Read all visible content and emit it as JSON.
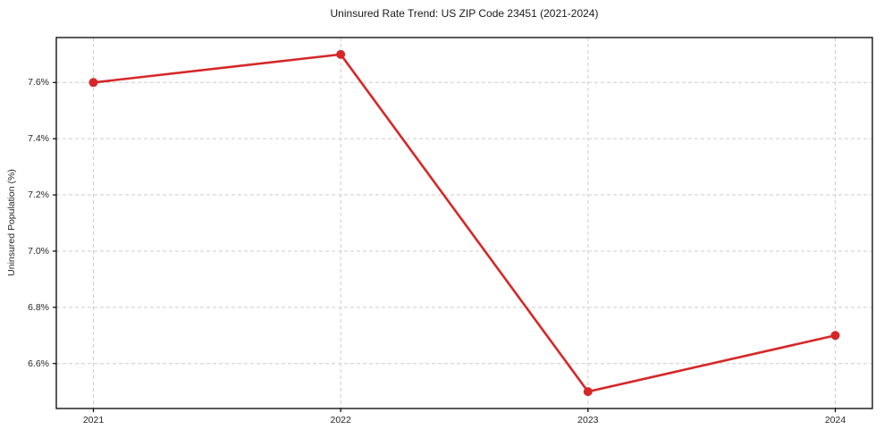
{
  "chart": {
    "title": "Uninsured Rate Trend: US ZIP Code 23451 (2021-2024)",
    "y_axis_label": "Uninsured Population (%)"
  },
  "chart_data": {
    "type": "line",
    "title": "Uninsured Rate Trend: US ZIP Code 23451 (2021-2024)",
    "xlabel": "",
    "ylabel": "Uninsured Population (%)",
    "x": [
      2021,
      2022,
      2023,
      2024
    ],
    "values": [
      7.6,
      7.7,
      6.5,
      6.7
    ],
    "xtick_labels": [
      "2021",
      "2022",
      "2023",
      "2024"
    ],
    "yticks": [
      6.6,
      6.8,
      7.0,
      7.2,
      7.4,
      7.6
    ],
    "ytick_labels": [
      "6.6%",
      "6.8%",
      "7.0%",
      "7.2%",
      "7.4%",
      "7.6%"
    ],
    "xlim": [
      2020.85,
      2024.15
    ],
    "ylim": [
      6.44,
      7.76
    ],
    "grid": true,
    "legend": "none",
    "line_color": "#d62728",
    "marker": "circle",
    "grid_color": "#cccccc",
    "spine_color": "#000000",
    "background_color": "#ffffff"
  }
}
